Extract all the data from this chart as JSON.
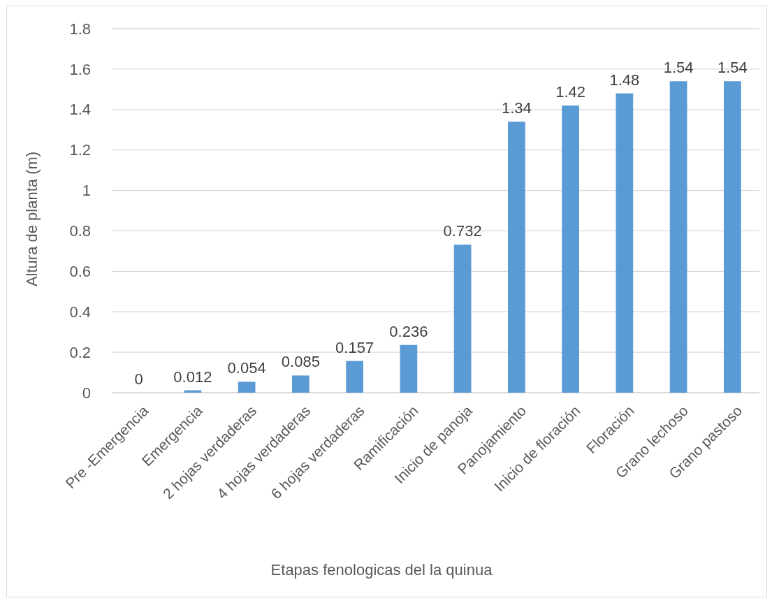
{
  "chart_data": {
    "type": "bar",
    "xlabel": "Etapas fenologicas del la quinua",
    "ylabel": "Altura de planta (m)",
    "categories": [
      "Pre -Emergencia",
      "Emergencia",
      "2 hojas verdaderas",
      "4 hojas verdaderas",
      "6 hojas verdaderas",
      "Ramificación",
      "Inicio de panoja",
      "Panojamiento",
      "Inicio de floración",
      "Floración",
      "Grano lechoso",
      "Grano pastoso"
    ],
    "values": [
      0,
      0.012,
      0.054,
      0.085,
      0.157,
      0.236,
      0.732,
      1.34,
      1.42,
      1.48,
      1.54,
      1.54
    ],
    "color": "#5b9bd5",
    "ylim": [
      0,
      1.8
    ],
    "yticks": [
      0,
      0.2,
      0.4,
      0.6,
      0.8,
      1,
      1.2,
      1.4,
      1.6,
      1.8
    ],
    "grid": "y",
    "data_labels": true
  }
}
